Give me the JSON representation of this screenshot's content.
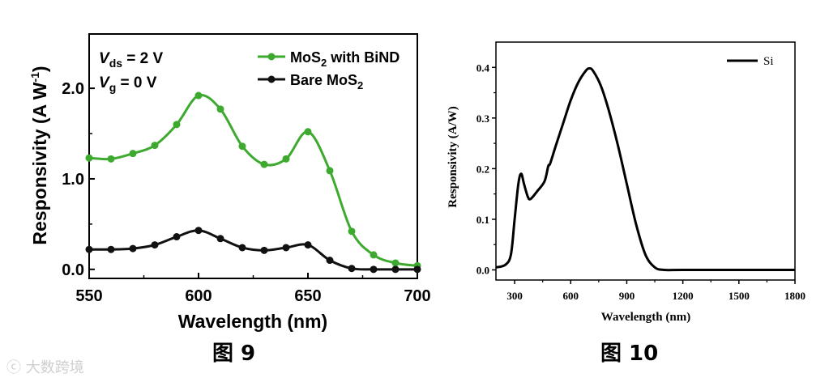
{
  "chart_data": [
    {
      "type": "line",
      "xlabel": "Wavelength (nm)",
      "ylabel": "Responsivity (A W",
      "ylabel_sup": "-1",
      "ylabel_tail": ")",
      "xlim": [
        550,
        700
      ],
      "ylim": [
        -0.1,
        2.6
      ],
      "xticks": [
        "550",
        "600",
        "650",
        "700"
      ],
      "yticks": [
        "0.0",
        "1.0",
        "2.0"
      ],
      "annotations": [
        {
          "var": "V",
          "sub": "ds",
          "rest": " = 2 V"
        },
        {
          "var": "V",
          "sub": "g",
          "rest": " = 0 V"
        }
      ],
      "x": [
        550,
        560,
        570,
        580,
        590,
        600,
        610,
        620,
        630,
        640,
        650,
        660,
        670,
        680,
        690,
        700
      ],
      "series": [
        {
          "name": "MoS2 with BiND",
          "label_main": "MoS",
          "label_sub": "2",
          "label_rest": " with BiND",
          "color": "#3daa2f",
          "values": [
            1.23,
            1.22,
            1.28,
            1.37,
            1.6,
            1.92,
            1.77,
            1.36,
            1.16,
            1.22,
            1.52,
            1.09,
            0.42,
            0.16,
            0.07,
            0.04
          ]
        },
        {
          "name": "Bare MoS2",
          "label_main": "Bare MoS",
          "label_sub": "2",
          "label_rest": "",
          "color": "#111111",
          "values": [
            0.22,
            0.22,
            0.23,
            0.27,
            0.36,
            0.43,
            0.34,
            0.24,
            0.21,
            0.24,
            0.27,
            0.1,
            0.01,
            0.0,
            0.0,
            0.0
          ]
        }
      ]
    },
    {
      "type": "line",
      "xlabel": "Wavelength (nm)",
      "ylabel": "Responsivity (A/W)",
      "xlim": [
        200,
        1800
      ],
      "ylim": [
        -0.02,
        0.45
      ],
      "xticks": [
        "300",
        "600",
        "900",
        "1200",
        "1500",
        "1800"
      ],
      "yticks": [
        "0.0",
        "0.1",
        "0.2",
        "0.3",
        "0.4"
      ],
      "series": [
        {
          "name": "Si",
          "color": "#000000",
          "x": [
            200,
            250,
            280,
            300,
            320,
            335,
            350,
            370,
            385,
            420,
            460,
            480,
            490,
            520,
            560,
            600,
            640,
            680,
            700,
            720,
            760,
            800,
            850,
            900,
            950,
            1000,
            1050,
            1100,
            1200,
            1500,
            1800
          ],
          "values": [
            0.005,
            0.01,
            0.03,
            0.1,
            0.17,
            0.19,
            0.17,
            0.145,
            0.14,
            0.155,
            0.175,
            0.205,
            0.21,
            0.245,
            0.29,
            0.335,
            0.37,
            0.393,
            0.398,
            0.393,
            0.365,
            0.32,
            0.25,
            0.17,
            0.09,
            0.03,
            0.005,
            0.0,
            0.0,
            0.0,
            0.0
          ]
        }
      ]
    }
  ],
  "captions": {
    "left": "图 9",
    "right": "图 10"
  },
  "watermark": "大数跨境"
}
